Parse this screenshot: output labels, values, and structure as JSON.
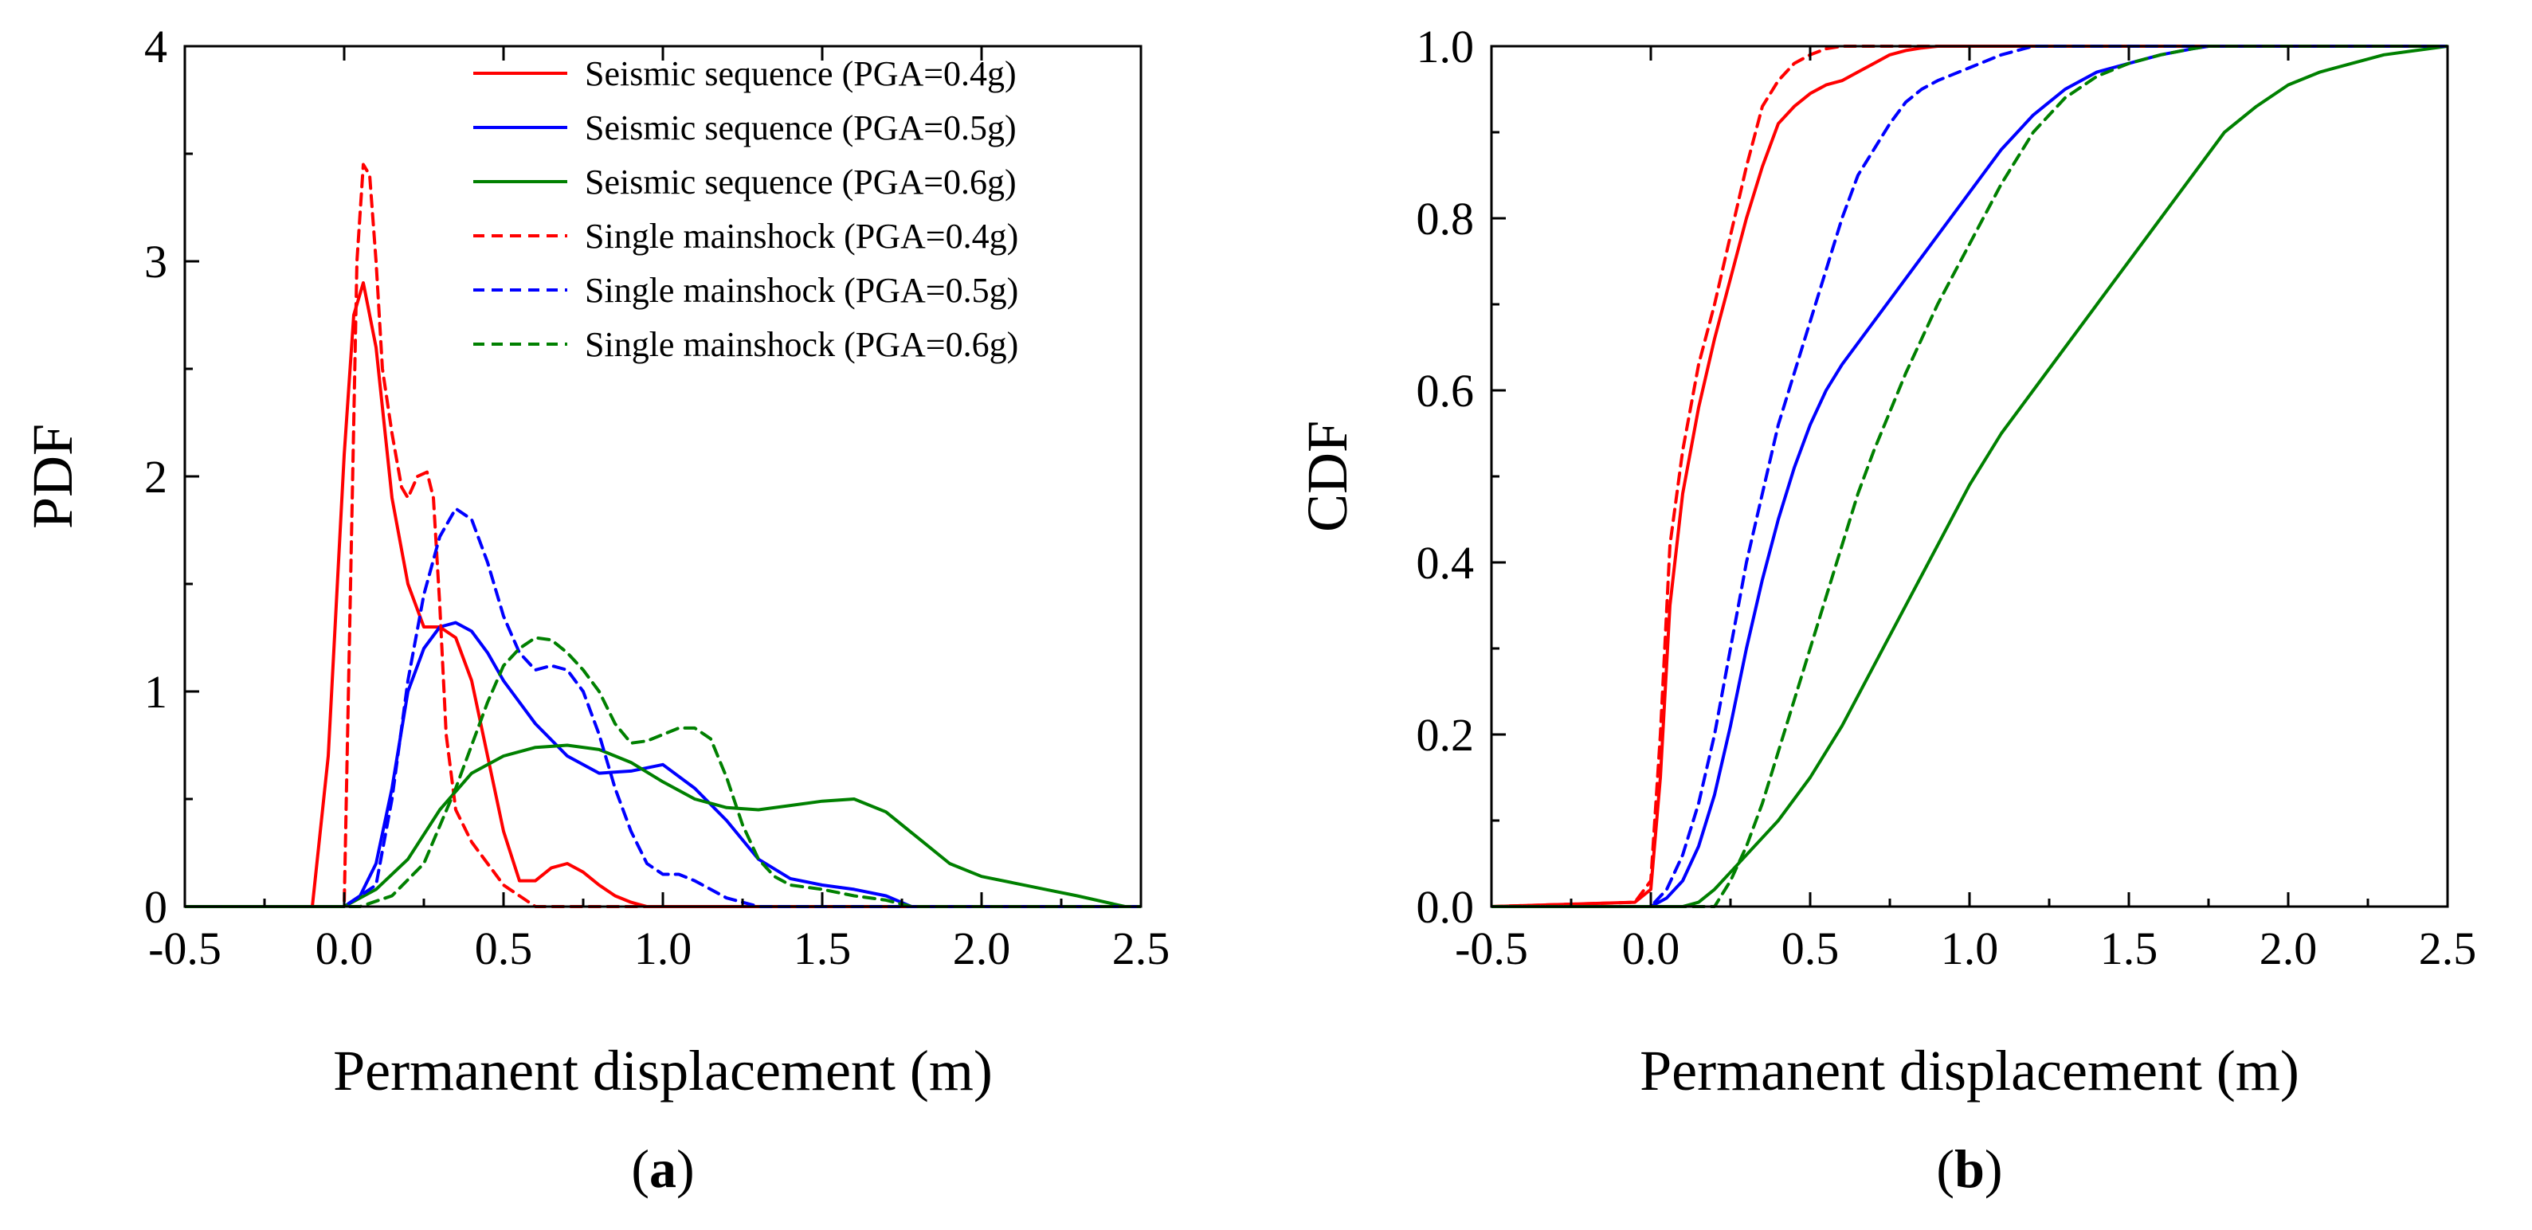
{
  "chart_data": [
    {
      "type": "line",
      "panel_label": "a",
      "title": "",
      "xlabel": "Permanent displacement (m)",
      "ylabel": "PDF",
      "xlim": [
        -0.5,
        2.5
      ],
      "ylim": [
        0,
        4
      ],
      "xticks": [
        -0.5,
        0.0,
        0.5,
        1.0,
        1.5,
        2.0,
        2.5
      ],
      "xtick_labels": [
        "-0.5",
        "0.0",
        "0.5",
        "1.0",
        "1.5",
        "2.0",
        "2.5"
      ],
      "yticks": [
        0,
        1,
        2,
        3,
        4
      ],
      "ytick_labels": [
        "0",
        "1",
        "2",
        "3",
        "4"
      ],
      "grid": false,
      "legend_position": "top-right",
      "series": [
        {
          "name": "Seismic sequence (PGA=0.4g)",
          "color": "#ff0000",
          "dash": "solid",
          "x": [
            -0.5,
            -0.1,
            -0.05,
            0.0,
            0.03,
            0.06,
            0.1,
            0.15,
            0.2,
            0.25,
            0.3,
            0.35,
            0.4,
            0.45,
            0.5,
            0.55,
            0.6,
            0.65,
            0.7,
            0.75,
            0.8,
            0.85,
            0.9,
            0.95,
            2.5
          ],
          "y": [
            0,
            0,
            0.7,
            2.1,
            2.75,
            2.9,
            2.6,
            1.9,
            1.5,
            1.3,
            1.3,
            1.25,
            1.05,
            0.7,
            0.35,
            0.12,
            0.12,
            0.18,
            0.2,
            0.16,
            0.1,
            0.05,
            0.02,
            0,
            0
          ]
        },
        {
          "name": "Seismic sequence (PGA=0.5g)",
          "color": "#0000ff",
          "dash": "solid",
          "x": [
            -0.5,
            0.0,
            0.05,
            0.1,
            0.15,
            0.2,
            0.25,
            0.3,
            0.35,
            0.4,
            0.45,
            0.5,
            0.6,
            0.7,
            0.8,
            0.9,
            1.0,
            1.1,
            1.2,
            1.3,
            1.4,
            1.5,
            1.6,
            1.7,
            1.78,
            2.5
          ],
          "y": [
            0,
            0,
            0.05,
            0.2,
            0.55,
            1.0,
            1.2,
            1.3,
            1.32,
            1.28,
            1.18,
            1.05,
            0.85,
            0.7,
            0.62,
            0.63,
            0.66,
            0.55,
            0.4,
            0.22,
            0.13,
            0.1,
            0.08,
            0.05,
            0,
            0
          ]
        },
        {
          "name": "Seismic sequence (PGA=0.6g)",
          "color": "#008000",
          "dash": "solid",
          "x": [
            -0.5,
            0.0,
            0.1,
            0.2,
            0.3,
            0.4,
            0.5,
            0.6,
            0.7,
            0.8,
            0.9,
            1.0,
            1.1,
            1.2,
            1.3,
            1.4,
            1.5,
            1.6,
            1.7,
            1.8,
            1.9,
            2.0,
            2.1,
            2.2,
            2.3,
            2.45,
            2.5
          ],
          "y": [
            0,
            0,
            0.08,
            0.22,
            0.45,
            0.62,
            0.7,
            0.74,
            0.75,
            0.73,
            0.67,
            0.58,
            0.5,
            0.46,
            0.45,
            0.47,
            0.49,
            0.5,
            0.44,
            0.32,
            0.2,
            0.14,
            0.11,
            0.08,
            0.05,
            0.0,
            0
          ]
        },
        {
          "name": "Single mainshock (PGA=0.4g)",
          "color": "#ff0000",
          "dash": "dashed",
          "x": [
            -0.5,
            0.0,
            0.02,
            0.04,
            0.06,
            0.08,
            0.1,
            0.12,
            0.15,
            0.18,
            0.2,
            0.23,
            0.26,
            0.28,
            0.3,
            0.32,
            0.35,
            0.4,
            0.45,
            0.5,
            0.55,
            0.6,
            2.5
          ],
          "y": [
            0,
            0,
            1.5,
            3.0,
            3.45,
            3.4,
            3.0,
            2.5,
            2.2,
            1.95,
            1.9,
            2.0,
            2.02,
            1.9,
            1.4,
            0.8,
            0.45,
            0.3,
            0.2,
            0.1,
            0.05,
            0,
            0
          ]
        },
        {
          "name": "Single mainshock (PGA=0.5g)",
          "color": "#0000ff",
          "dash": "dashed",
          "x": [
            -0.5,
            0.0,
            0.1,
            0.15,
            0.2,
            0.25,
            0.3,
            0.35,
            0.4,
            0.45,
            0.5,
            0.55,
            0.6,
            0.65,
            0.7,
            0.75,
            0.8,
            0.85,
            0.9,
            0.95,
            1.0,
            1.05,
            1.1,
            1.15,
            1.2,
            1.25,
            1.3,
            2.5
          ],
          "y": [
            0,
            0,
            0.1,
            0.5,
            1.05,
            1.45,
            1.72,
            1.85,
            1.8,
            1.6,
            1.35,
            1.18,
            1.1,
            1.12,
            1.1,
            1.0,
            0.8,
            0.55,
            0.35,
            0.2,
            0.15,
            0.15,
            0.12,
            0.08,
            0.04,
            0.02,
            0,
            0
          ]
        },
        {
          "name": "Single mainshock (PGA=0.6g)",
          "color": "#008000",
          "dash": "dashed",
          "x": [
            -0.5,
            0.05,
            0.15,
            0.25,
            0.35,
            0.45,
            0.5,
            0.55,
            0.6,
            0.65,
            0.7,
            0.75,
            0.8,
            0.85,
            0.9,
            0.95,
            1.0,
            1.05,
            1.1,
            1.15,
            1.2,
            1.25,
            1.3,
            1.35,
            1.4,
            1.5,
            1.6,
            1.7,
            1.78,
            2.5
          ],
          "y": [
            0,
            0,
            0.05,
            0.2,
            0.55,
            0.95,
            1.12,
            1.2,
            1.25,
            1.24,
            1.18,
            1.1,
            1.0,
            0.85,
            0.76,
            0.77,
            0.8,
            0.83,
            0.83,
            0.78,
            0.6,
            0.38,
            0.22,
            0.14,
            0.1,
            0.08,
            0.05,
            0.03,
            0,
            0
          ]
        }
      ]
    },
    {
      "type": "line",
      "panel_label": "b",
      "title": "",
      "xlabel": "Permanent displacement (m)",
      "ylabel": "CDF",
      "xlim": [
        -0.5,
        2.5
      ],
      "ylim": [
        0,
        1.0
      ],
      "xticks": [
        -0.5,
        0.0,
        0.5,
        1.0,
        1.5,
        2.0,
        2.5
      ],
      "xtick_labels": [
        "-0.5",
        "0.0",
        "0.5",
        "1.0",
        "1.5",
        "2.0",
        "2.5"
      ],
      "yticks": [
        0.0,
        0.2,
        0.4,
        0.6,
        0.8,
        1.0
      ],
      "ytick_labels": [
        "0.0",
        "0.2",
        "0.4",
        "0.6",
        "0.8",
        "1.0"
      ],
      "grid": false,
      "series": [
        {
          "name": "Seismic sequence (PGA=0.4g)",
          "color": "#ff0000",
          "dash": "solid",
          "x": [
            -0.5,
            -0.05,
            0.0,
            0.03,
            0.06,
            0.1,
            0.15,
            0.2,
            0.25,
            0.3,
            0.35,
            0.4,
            0.45,
            0.5,
            0.55,
            0.6,
            0.65,
            0.7,
            0.75,
            0.8,
            0.85,
            0.9,
            2.5
          ],
          "y": [
            0,
            0.005,
            0.02,
            0.15,
            0.35,
            0.48,
            0.58,
            0.66,
            0.73,
            0.8,
            0.86,
            0.91,
            0.93,
            0.945,
            0.955,
            0.96,
            0.97,
            0.98,
            0.99,
            0.995,
            0.998,
            1.0,
            1.0
          ]
        },
        {
          "name": "Seismic sequence (PGA=0.5g)",
          "color": "#0000ff",
          "dash": "solid",
          "x": [
            -0.5,
            0.0,
            0.05,
            0.1,
            0.15,
            0.2,
            0.25,
            0.3,
            0.35,
            0.4,
            0.45,
            0.5,
            0.55,
            0.6,
            0.7,
            0.8,
            0.9,
            1.0,
            1.1,
            1.2,
            1.3,
            1.4,
            1.5,
            1.6,
            1.7,
            1.75,
            2.5
          ],
          "y": [
            0,
            0.0,
            0.01,
            0.03,
            0.07,
            0.13,
            0.21,
            0.3,
            0.38,
            0.45,
            0.51,
            0.56,
            0.6,
            0.63,
            0.68,
            0.73,
            0.78,
            0.83,
            0.88,
            0.92,
            0.95,
            0.97,
            0.98,
            0.99,
            0.997,
            1.0,
            1.0
          ]
        },
        {
          "name": "Seismic sequence (PGA=0.6g)",
          "color": "#008000",
          "dash": "solid",
          "x": [
            -0.5,
            0.1,
            0.15,
            0.2,
            0.25,
            0.3,
            0.4,
            0.5,
            0.6,
            0.7,
            0.8,
            0.9,
            1.0,
            1.1,
            1.2,
            1.3,
            1.4,
            1.5,
            1.6,
            1.7,
            1.8,
            1.9,
            2.0,
            2.1,
            2.2,
            2.3,
            2.4,
            2.5
          ],
          "y": [
            0,
            0.0,
            0.005,
            0.02,
            0.04,
            0.06,
            0.1,
            0.15,
            0.21,
            0.28,
            0.35,
            0.42,
            0.49,
            0.55,
            0.6,
            0.65,
            0.7,
            0.75,
            0.8,
            0.85,
            0.9,
            0.93,
            0.955,
            0.97,
            0.98,
            0.99,
            0.995,
            1.0
          ]
        },
        {
          "name": "Single mainshock (PGA=0.4g)",
          "color": "#ff0000",
          "dash": "dashed",
          "x": [
            -0.5,
            -0.05,
            0.0,
            0.03,
            0.06,
            0.1,
            0.15,
            0.2,
            0.25,
            0.3,
            0.35,
            0.4,
            0.45,
            0.5,
            0.55,
            0.6,
            2.5
          ],
          "y": [
            0,
            0.005,
            0.03,
            0.2,
            0.42,
            0.53,
            0.63,
            0.7,
            0.78,
            0.86,
            0.93,
            0.96,
            0.98,
            0.99,
            0.997,
            1.0,
            1.0
          ]
        },
        {
          "name": "Single mainshock (PGA=0.5g)",
          "color": "#0000ff",
          "dash": "dashed",
          "x": [
            -0.5,
            0.0,
            0.05,
            0.1,
            0.15,
            0.2,
            0.25,
            0.3,
            0.35,
            0.4,
            0.45,
            0.5,
            0.55,
            0.6,
            0.65,
            0.7,
            0.75,
            0.8,
            0.85,
            0.9,
            1.0,
            1.1,
            1.2,
            2.5
          ],
          "y": [
            0,
            0.0,
            0.02,
            0.06,
            0.12,
            0.2,
            0.3,
            0.4,
            0.48,
            0.56,
            0.62,
            0.68,
            0.74,
            0.8,
            0.85,
            0.88,
            0.91,
            0.935,
            0.95,
            0.96,
            0.975,
            0.99,
            1.0,
            1.0
          ]
        },
        {
          "name": "Single mainshock (PGA=0.6g)",
          "color": "#008000",
          "dash": "dashed",
          "x": [
            -0.5,
            0.2,
            0.25,
            0.3,
            0.35,
            0.4,
            0.45,
            0.5,
            0.55,
            0.6,
            0.65,
            0.7,
            0.8,
            0.9,
            1.0,
            1.1,
            1.2,
            1.3,
            1.4,
            1.5,
            1.6,
            1.7,
            1.75,
            2.5
          ],
          "y": [
            0,
            0.0,
            0.03,
            0.07,
            0.12,
            0.18,
            0.24,
            0.3,
            0.36,
            0.42,
            0.48,
            0.53,
            0.62,
            0.7,
            0.77,
            0.84,
            0.9,
            0.94,
            0.965,
            0.98,
            0.99,
            0.997,
            1.0,
            1.0
          ]
        }
      ]
    }
  ]
}
